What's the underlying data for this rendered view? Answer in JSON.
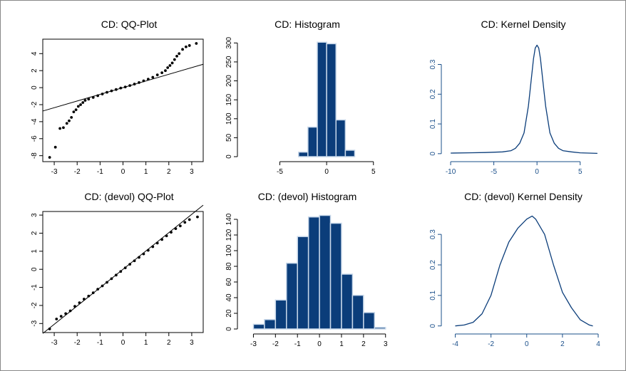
{
  "colors": {
    "bar_fill": "#0b3d7a",
    "bar_edge": "#c8d8ea",
    "density_line": "#0b3d7a",
    "density_axis": "#1a4f8a",
    "points": "#000000",
    "frame": "#888888"
  },
  "chart_data": [
    {
      "id": "qq1",
      "type": "scatter",
      "title": "CD: QQ-Plot",
      "xlim": [
        -3.5,
        3.5
      ],
      "ylim": [
        -8.7,
        5.7
      ],
      "xticks": [
        -3,
        -2,
        -1,
        0,
        1,
        2,
        3
      ],
      "yticks": [
        -8,
        -6,
        -4,
        -2,
        0,
        2,
        4
      ],
      "line": [
        [
          -3.5,
          -2.75
        ],
        [
          3.5,
          2.75
        ]
      ],
      "points": [
        [
          -3.2,
          -8.2
        ],
        [
          -2.95,
          -7.0
        ],
        [
          -2.75,
          -4.8
        ],
        [
          -2.6,
          -4.7
        ],
        [
          -2.45,
          -4.2
        ],
        [
          -2.35,
          -3.9
        ],
        [
          -2.25,
          -3.5
        ],
        [
          -2.15,
          -2.85
        ],
        [
          -2.05,
          -2.6
        ],
        [
          -1.95,
          -2.2
        ],
        [
          -1.85,
          -2.0
        ],
        [
          -1.75,
          -1.75
        ],
        [
          -1.65,
          -1.5
        ],
        [
          -1.5,
          -1.35
        ],
        [
          -1.3,
          -1.15
        ],
        [
          -1.1,
          -0.95
        ],
        [
          -0.9,
          -0.75
        ],
        [
          -0.7,
          -0.55
        ],
        [
          -0.5,
          -0.38
        ],
        [
          -0.3,
          -0.22
        ],
        [
          -0.1,
          -0.05
        ],
        [
          0.1,
          0.08
        ],
        [
          0.3,
          0.25
        ],
        [
          0.5,
          0.42
        ],
        [
          0.7,
          0.6
        ],
        [
          0.9,
          0.8
        ],
        [
          1.1,
          1.0
        ],
        [
          1.3,
          1.22
        ],
        [
          1.5,
          1.5
        ],
        [
          1.7,
          1.75
        ],
        [
          1.85,
          2.0
        ],
        [
          1.95,
          2.35
        ],
        [
          2.05,
          2.6
        ],
        [
          2.15,
          2.9
        ],
        [
          2.25,
          3.3
        ],
        [
          2.35,
          3.7
        ],
        [
          2.45,
          4.0
        ],
        [
          2.6,
          4.5
        ],
        [
          2.75,
          4.8
        ],
        [
          2.9,
          4.95
        ],
        [
          3.2,
          5.2
        ]
      ]
    },
    {
      "id": "hist1",
      "type": "bar",
      "title": "CD: Histogram",
      "xlim": [
        -9,
        7
      ],
      "ylim": [
        0,
        310
      ],
      "xticks": [
        -5,
        0,
        5
      ],
      "yticks": [
        0,
        50,
        100,
        150,
        200,
        250,
        300
      ],
      "bin_edges": [
        -3,
        -2,
        -1,
        0,
        1,
        2,
        3
      ],
      "values": [
        12,
        78,
        302,
        298,
        97,
        17
      ]
    },
    {
      "id": "kd1",
      "type": "line",
      "title": "CD: Kernel Density",
      "xlim": [
        -10.5,
        7.5
      ],
      "ylim": [
        -0.01,
        0.385
      ],
      "xticks": [
        -10,
        -5,
        0,
        5
      ],
      "yticks": [
        0.0,
        0.1,
        0.2,
        0.3
      ],
      "x": [
        -10,
        -8,
        -6,
        -4,
        -3,
        -2.5,
        -2,
        -1.5,
        -1,
        -0.7,
        -0.4,
        -0.2,
        0,
        0.2,
        0.4,
        0.7,
        1,
        1.5,
        2,
        2.5,
        3,
        4,
        5,
        7
      ],
      "y": [
        0.002,
        0.003,
        0.004,
        0.006,
        0.01,
        0.018,
        0.035,
        0.07,
        0.16,
        0.24,
        0.32,
        0.355,
        0.365,
        0.355,
        0.32,
        0.24,
        0.16,
        0.07,
        0.035,
        0.018,
        0.01,
        0.006,
        0.003,
        0.001
      ]
    },
    {
      "id": "qq2",
      "type": "scatter",
      "title": "CD: (devol) QQ-Plot",
      "xlim": [
        -3.5,
        3.5
      ],
      "ylim": [
        -3.5,
        3.2
      ],
      "xticks": [
        -3,
        -2,
        -1,
        0,
        1,
        2,
        3
      ],
      "yticks": [
        -3,
        -2,
        -1,
        0,
        1,
        2,
        3
      ],
      "line": [
        [
          -3.5,
          -3.55
        ],
        [
          3.5,
          3.55
        ]
      ],
      "points": [
        [
          -3.2,
          -3.3
        ],
        [
          -2.9,
          -2.75
        ],
        [
          -2.7,
          -2.6
        ],
        [
          -2.5,
          -2.45
        ],
        [
          -2.3,
          -2.3
        ],
        [
          -2.1,
          -2.05
        ],
        [
          -1.9,
          -1.85
        ],
        [
          -1.7,
          -1.65
        ],
        [
          -1.5,
          -1.48
        ],
        [
          -1.3,
          -1.3
        ],
        [
          -1.1,
          -1.1
        ],
        [
          -0.9,
          -0.92
        ],
        [
          -0.7,
          -0.72
        ],
        [
          -0.5,
          -0.52
        ],
        [
          -0.3,
          -0.32
        ],
        [
          -0.1,
          -0.12
        ],
        [
          0.1,
          0.08
        ],
        [
          0.3,
          0.28
        ],
        [
          0.5,
          0.47
        ],
        [
          0.7,
          0.66
        ],
        [
          0.9,
          0.85
        ],
        [
          1.1,
          1.05
        ],
        [
          1.3,
          1.25
        ],
        [
          1.5,
          1.45
        ],
        [
          1.7,
          1.65
        ],
        [
          1.9,
          1.85
        ],
        [
          2.1,
          2.05
        ],
        [
          2.3,
          2.25
        ],
        [
          2.5,
          2.4
        ],
        [
          2.7,
          2.6
        ],
        [
          2.9,
          2.75
        ],
        [
          3.25,
          2.9
        ]
      ]
    },
    {
      "id": "hist2",
      "type": "bar",
      "title": "CD: (devol) Histogram",
      "xlim": [
        -3.5,
        3.3
      ],
      "ylim": [
        0,
        150
      ],
      "xticks": [
        -3,
        -2,
        -1,
        0,
        1,
        2,
        3
      ],
      "yticks": [
        0,
        20,
        40,
        60,
        80,
        100,
        120,
        140
      ],
      "bin_edges": [
        -3.5,
        -3,
        -2.5,
        -2,
        -1.5,
        -1,
        -0.5,
        0,
        0.5,
        1,
        1.5,
        2,
        2.5,
        3
      ],
      "values": [
        0,
        6,
        12,
        37,
        84,
        118,
        143,
        145,
        135,
        70,
        43,
        21,
        2
      ]
    },
    {
      "id": "kd2",
      "type": "line",
      "title": "CD: (devol) Kernel Density",
      "xlim": [
        -4.5,
        4.2
      ],
      "ylim": [
        -0.01,
        0.375
      ],
      "xticks": [
        -4,
        -2,
        0,
        2,
        4
      ],
      "yticks": [
        0.0,
        0.1,
        0.2,
        0.3
      ],
      "x": [
        -4,
        -3.5,
        -3,
        -2.5,
        -2,
        -1.5,
        -1,
        -0.5,
        0,
        0.3,
        0.5,
        1,
        1.5,
        2,
        2.5,
        3,
        3.5,
        3.7
      ],
      "y": [
        0.0,
        0.003,
        0.012,
        0.04,
        0.1,
        0.2,
        0.275,
        0.32,
        0.35,
        0.36,
        0.35,
        0.3,
        0.2,
        0.11,
        0.06,
        0.02,
        0.003,
        0.0
      ]
    }
  ]
}
